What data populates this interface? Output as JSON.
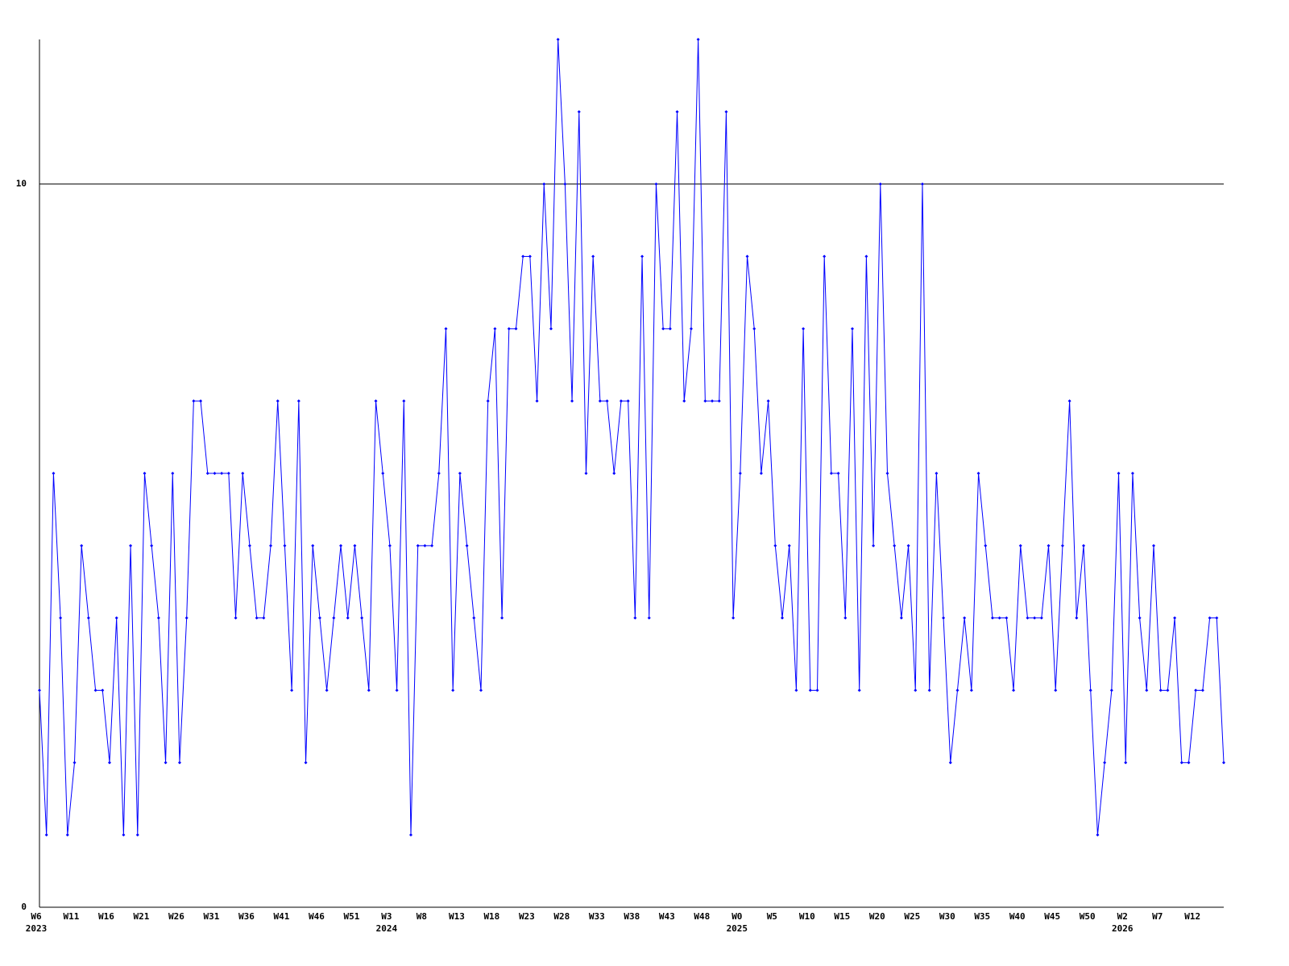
{
  "chart_data": {
    "type": "line",
    "categories": [
      "W6",
      null,
      null,
      null,
      null,
      "W11",
      null,
      null,
      null,
      null,
      "W16",
      null,
      null,
      null,
      null,
      "W21",
      null,
      null,
      null,
      null,
      "W26",
      null,
      null,
      null,
      null,
      "W31",
      null,
      null,
      null,
      null,
      "W36",
      null,
      null,
      null,
      null,
      "W41",
      null,
      null,
      null,
      null,
      "W46",
      null,
      null,
      null,
      null,
      "W51",
      null,
      null,
      null,
      null,
      "W3",
      null,
      null,
      null,
      null,
      "W8",
      null,
      null,
      null,
      null,
      "W13",
      null,
      null,
      null,
      null,
      "W18",
      null,
      null,
      null,
      null,
      "W23",
      null,
      null,
      null,
      null,
      "W28",
      null,
      null,
      null,
      null,
      "W33",
      null,
      null,
      null,
      null,
      "W38",
      null,
      null,
      null,
      null,
      "W43",
      null,
      null,
      null,
      null,
      "W48",
      null,
      null,
      null,
      null,
      "W0",
      null,
      null,
      null,
      null,
      "W5",
      null,
      null,
      null,
      null,
      "W10",
      null,
      null,
      null,
      null,
      "W15",
      null,
      null,
      null,
      null,
      "W20",
      null,
      null,
      null,
      null,
      "W25",
      null,
      null,
      null,
      null,
      "W30",
      null,
      null,
      null,
      null,
      "W35",
      null,
      null,
      null,
      null,
      "W40",
      null,
      null,
      null,
      null,
      "W45",
      null,
      null,
      null,
      null,
      "W50",
      null,
      null,
      null,
      null,
      "W2",
      null,
      null,
      null,
      null,
      "W7",
      null,
      null,
      null,
      null,
      "W12",
      null,
      null,
      null,
      null
    ],
    "years": [
      "2023",
      null,
      null,
      null,
      null,
      null,
      null,
      null,
      null,
      null,
      null,
      null,
      null,
      null,
      null,
      null,
      null,
      null,
      null,
      null,
      null,
      null,
      null,
      null,
      null,
      null,
      null,
      null,
      null,
      null,
      null,
      null,
      null,
      null,
      null,
      null,
      null,
      null,
      null,
      null,
      null,
      null,
      null,
      null,
      null,
      null,
      null,
      null,
      null,
      null,
      "2024",
      null,
      null,
      null,
      null,
      null,
      null,
      null,
      null,
      null,
      null,
      null,
      null,
      null,
      null,
      null,
      null,
      null,
      null,
      null,
      null,
      null,
      null,
      null,
      null,
      null,
      null,
      null,
      null,
      null,
      null,
      null,
      null,
      null,
      null,
      null,
      null,
      null,
      null,
      null,
      null,
      null,
      null,
      null,
      null,
      null,
      null,
      null,
      null,
      null,
      "2025",
      null,
      null,
      null,
      null,
      null,
      null,
      null,
      null,
      null,
      null,
      null,
      null,
      null,
      null,
      null,
      null,
      null,
      null,
      null,
      null,
      null,
      null,
      null,
      null,
      null,
      null,
      null,
      null,
      null,
      null,
      null,
      null,
      null,
      null,
      null,
      null,
      null,
      null,
      null,
      null,
      null,
      null,
      null,
      null,
      null,
      null,
      null,
      null,
      null,
      null,
      null,
      null,
      null,
      null,
      "2026",
      null,
      null,
      null,
      null,
      null,
      null,
      null,
      null,
      null,
      null,
      null,
      null,
      null,
      null
    ],
    "series": [
      {
        "color": "#0000ff",
        "values": [
          3,
          1,
          6,
          4,
          1,
          2,
          5,
          4,
          3,
          3,
          2,
          4,
          1,
          5,
          1,
          6,
          5,
          4,
          2,
          6,
          2,
          4,
          7,
          7,
          6,
          6,
          6,
          6,
          4,
          6,
          5,
          4,
          4,
          5,
          7,
          5,
          3,
          7,
          2,
          5,
          4,
          3,
          4,
          5,
          4,
          5,
          4,
          3,
          7,
          6,
          5,
          3,
          7,
          1,
          5,
          5,
          5,
          6,
          8,
          3,
          6,
          5,
          4,
          3,
          7,
          8,
          4,
          8,
          8,
          9,
          9,
          7,
          10,
          8,
          12,
          10,
          7,
          11,
          6,
          9,
          7,
          7,
          6,
          7,
          7,
          4,
          9,
          4,
          10,
          8,
          8,
          11,
          7,
          8,
          12,
          7,
          7,
          7,
          11,
          4,
          6,
          9,
          8,
          6,
          7,
          5,
          4,
          5,
          3,
          8,
          3,
          3,
          9,
          6,
          6,
          4,
          8,
          3,
          9,
          5,
          10,
          6,
          5,
          4,
          5,
          3,
          10,
          3,
          6,
          4,
          2,
          3,
          4,
          3,
          6,
          5,
          4,
          4,
          4,
          3,
          5,
          4,
          4,
          4,
          5,
          3,
          5,
          7,
          4,
          5,
          3,
          1,
          2,
          3,
          6,
          2,
          6,
          4,
          3,
          5,
          3,
          3,
          4,
          2,
          2,
          3,
          3,
          4,
          4,
          2
        ]
      }
    ],
    "ylim": [
      0,
      12
    ],
    "yticks": [
      0,
      10
    ],
    "grid": true
  }
}
